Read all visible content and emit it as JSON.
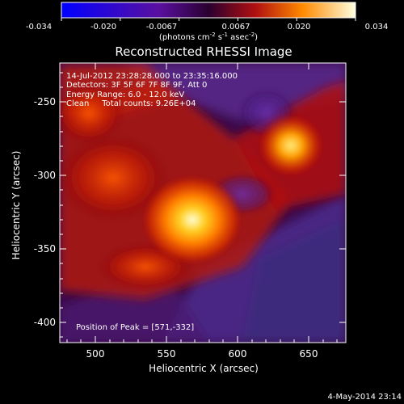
{
  "colorbar": {
    "ticks": [
      "-0.034",
      "-0.020",
      "-0.0067",
      "0.0067",
      "0.020",
      "0.034"
    ],
    "unit_main": "(photons cm",
    "unit_exp1": "-2",
    "unit_mid": " s",
    "unit_exp2": "-1",
    "unit_mid2": " asec",
    "unit_exp3": "-2",
    "unit_end": ")"
  },
  "title": "Reconstructed RHESSI Image",
  "annotation": {
    "line1": "14-Jul-2012 23:28:28.000 to 23:35:16.000",
    "line2": "Detectors: 3F 5F 6F 7F 8F 9F, Att 0",
    "line3": "Energy Range: 6.0 - 12.0 keV",
    "line4": "Clean     Total counts: 9.26E+04",
    "peak": "Position of Peak = [571,-332]"
  },
  "axes": {
    "x_label": "Heliocentric X (arcsec)",
    "y_label": "Heliocentric Y (arcsec)",
    "x_ticks": [
      "500",
      "550",
      "600",
      "650"
    ],
    "y_ticks": [
      "-250",
      "-300",
      "-350",
      "-400"
    ]
  },
  "timestamp": "4-May-2014 23:14",
  "colors": {
    "background": "#000000",
    "text": "#ffffff"
  }
}
